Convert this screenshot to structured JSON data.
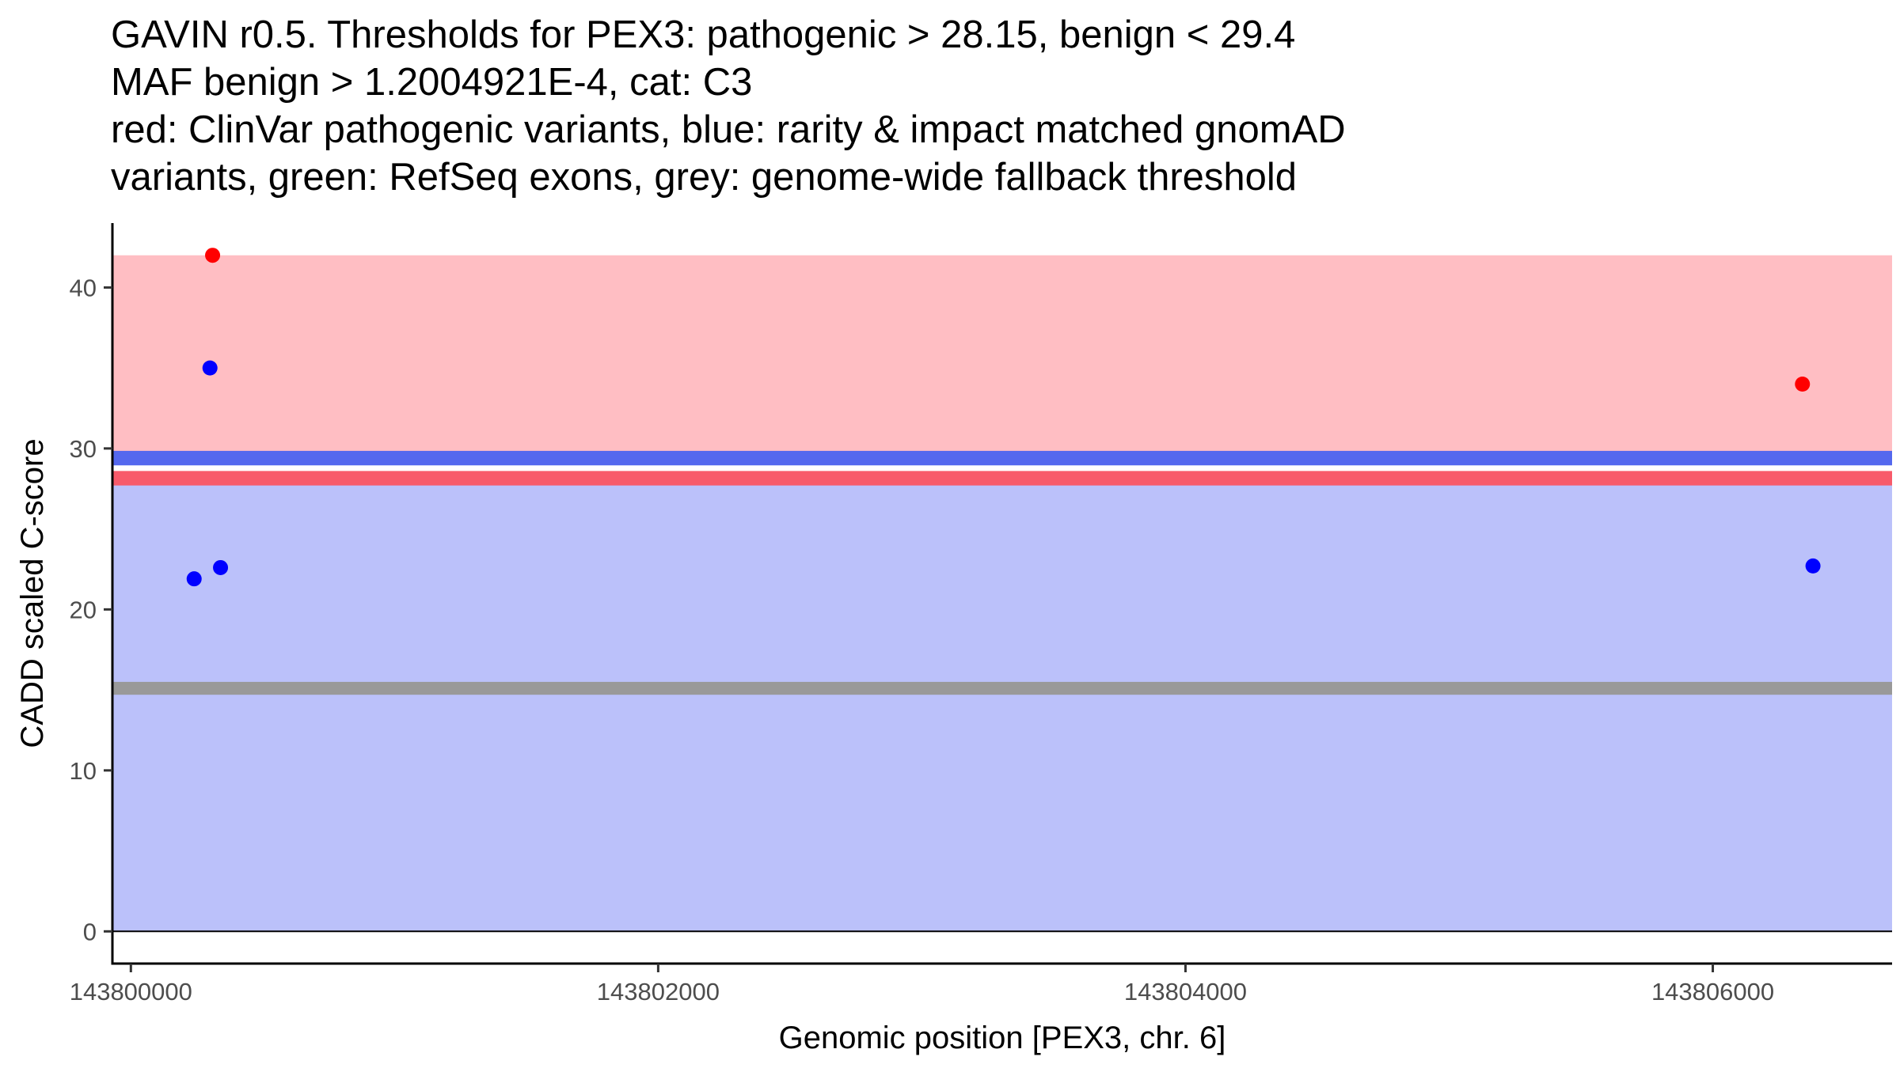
{
  "title": {
    "lines": [
      "GAVIN r0.5. Thresholds for PEX3: pathogenic > 28.15, benign < 29.4",
      "MAF benign > 1.2004921E-4, cat: C3",
      "red: ClinVar pathogenic variants, blue: rarity & impact matched gnomAD",
      "variants, green: RefSeq exons, grey: genome-wide fallback threshold"
    ]
  },
  "colors": {
    "pathogenic_region": "#ffbec3",
    "benign_region": "#bbc1fa",
    "pathogenic_threshold": "#f85a6a",
    "benign_threshold": "#5468ee",
    "fallback_threshold": "#999999",
    "pathogenic_point": "#ff0000",
    "benign_point": "#0000ff"
  },
  "chart_data": {
    "type": "scatter",
    "title": "GAVIN r0.5. Thresholds for PEX3: pathogenic > 28.15, benign < 29.4",
    "xlabel": "Genomic position [PEX3, chr. 6]",
    "ylabel": "CADD scaled C-score",
    "xlim": [
      143799930,
      143806680
    ],
    "ylim": [
      -2,
      44
    ],
    "x_ticks": [
      143800000,
      143802000,
      143804000,
      143806000
    ],
    "x_tick_labels": [
      "143800000",
      "143802000",
      "143804000",
      "143806000"
    ],
    "y_ticks": [
      0,
      10,
      20,
      30,
      40
    ],
    "y_tick_labels": [
      "0",
      "10",
      "20",
      "30",
      "40"
    ],
    "regions": [
      {
        "name": "pathogenic",
        "y_from": 29.4,
        "y_to": 42,
        "color": "#ffbec3"
      },
      {
        "name": "benign",
        "y_from": 0,
        "y_to": 28.15,
        "color": "#bbc1fa"
      }
    ],
    "threshold_lines": [
      {
        "name": "benign-threshold",
        "y_from": 28.95,
        "y_to": 29.85,
        "color": "#5468ee"
      },
      {
        "name": "pathogenic-threshold",
        "y_from": 27.7,
        "y_to": 28.6,
        "color": "#f85a6a"
      },
      {
        "name": "fallback-threshold",
        "y_from": 14.7,
        "y_to": 15.5,
        "color": "#999999"
      }
    ],
    "series": [
      {
        "name": "ClinVar pathogenic variants",
        "color": "#ff0000",
        "points": [
          {
            "x": 143800310,
            "y": 42.0
          },
          {
            "x": 143806340,
            "y": 34.0
          }
        ]
      },
      {
        "name": "rarity & impact matched gnomAD variants",
        "color": "#0000ff",
        "points": [
          {
            "x": 143800300,
            "y": 35.0
          },
          {
            "x": 143800240,
            "y": 21.9
          },
          {
            "x": 143800340,
            "y": 22.6
          },
          {
            "x": 143806380,
            "y": 22.7
          }
        ]
      }
    ]
  }
}
